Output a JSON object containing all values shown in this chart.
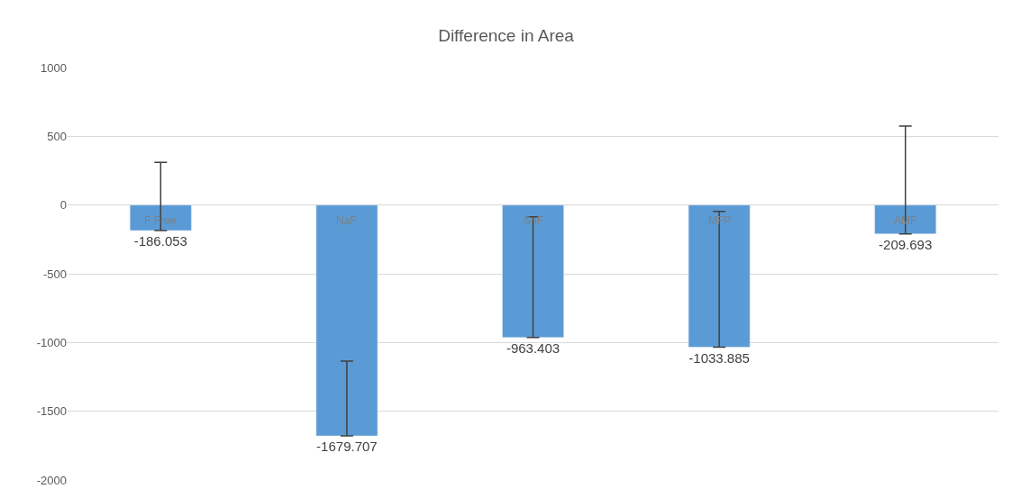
{
  "chart_data": {
    "type": "bar",
    "title": "Difference in Area",
    "categories": [
      "F Free",
      "NaF",
      "SnF",
      "MFP",
      "AMF"
    ],
    "values": [
      -186.053,
      -1679.707,
      -963.403,
      -1033.885,
      -209.693
    ],
    "errors": [
      [
        -186.053,
        310
      ],
      [
        -1679.707,
        -1135
      ],
      [
        -963.403,
        -85
      ],
      [
        -1033.885,
        -47
      ],
      [
        -209.693,
        575
      ]
    ],
    "color": "#5b9bd5",
    "data_labels": true,
    "ylim": [
      -2000,
      1000
    ],
    "yticks": [
      -2000,
      -1500,
      -1000,
      -500,
      0,
      500,
      1000
    ],
    "grid": "y"
  }
}
